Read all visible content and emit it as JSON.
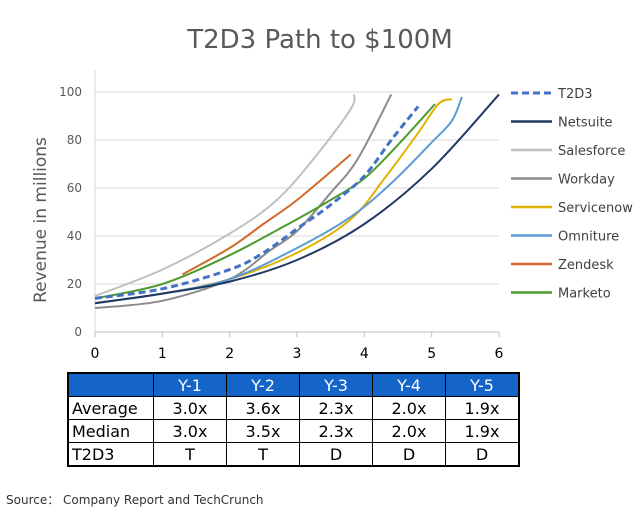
{
  "chart_data": {
    "type": "line",
    "title": "T2D3 Path to $100M",
    "xlabel": "",
    "ylabel": "Revenue in millions",
    "xlim": [
      0,
      6
    ],
    "ylim": [
      0,
      100
    ],
    "xticks": [
      "0",
      "1",
      "2",
      "3",
      "4",
      "5",
      "6"
    ],
    "yticks": [
      "0",
      "20",
      "40",
      "60",
      "80",
      "100"
    ],
    "grid": true,
    "legend_position": "right",
    "series": [
      {
        "name": "T2D3",
        "color": "#4472c4",
        "dashed": true,
        "points": [
          [
            0,
            14
          ],
          [
            1,
            18
          ],
          [
            2,
            26
          ],
          [
            2.5,
            33
          ],
          [
            3,
            43
          ],
          [
            3.5,
            53
          ],
          [
            4,
            65
          ],
          [
            4.4,
            80
          ],
          [
            4.8,
            94
          ]
        ]
      },
      {
        "name": "Netsuite",
        "color": "#1f3864",
        "points": [
          [
            0,
            12
          ],
          [
            1,
            16
          ],
          [
            2,
            21
          ],
          [
            3,
            30
          ],
          [
            4,
            45
          ],
          [
            5,
            68
          ],
          [
            6,
            99
          ]
        ]
      },
      {
        "name": "Salesforce",
        "color": "#c0c0c0",
        "points": [
          [
            0,
            15
          ],
          [
            1,
            26
          ],
          [
            2,
            41
          ],
          [
            2.7,
            55
          ],
          [
            3.3,
            74
          ],
          [
            3.8,
            93
          ],
          [
            3.85,
            99
          ]
        ]
      },
      {
        "name": "Workday",
        "color": "#8c8c8c",
        "points": [
          [
            0,
            10
          ],
          [
            1,
            13
          ],
          [
            2,
            22
          ],
          [
            2.6,
            34
          ],
          [
            3,
            42
          ],
          [
            3.5,
            58
          ],
          [
            3.9,
            72
          ],
          [
            4.4,
            99
          ]
        ]
      },
      {
        "name": "Servicenow",
        "color": "#e2b100",
        "points": [
          [
            0,
            12
          ],
          [
            1,
            16
          ],
          [
            2,
            22
          ],
          [
            3,
            33
          ],
          [
            3.8,
            47
          ],
          [
            4.3,
            64
          ],
          [
            4.8,
            83
          ],
          [
            5.1,
            95
          ],
          [
            5.3,
            97
          ]
        ]
      },
      {
        "name": "Omniture",
        "color": "#5b9bd5",
        "points": [
          [
            0,
            12
          ],
          [
            1,
            16
          ],
          [
            2,
            22
          ],
          [
            3,
            35
          ],
          [
            3.8,
            48
          ],
          [
            4.4,
            62
          ],
          [
            5,
            79
          ],
          [
            5.3,
            88
          ],
          [
            5.45,
            98
          ]
        ]
      },
      {
        "name": "Zendesk",
        "color": "#d0692a",
        "points": [
          [
            1.3,
            24
          ],
          [
            2,
            35
          ],
          [
            2.5,
            45
          ],
          [
            3,
            55
          ],
          [
            3.8,
            74
          ]
        ]
      },
      {
        "name": "Marketo",
        "color": "#4e9a2f",
        "points": [
          [
            0,
            14
          ],
          [
            1,
            20
          ],
          [
            2,
            32
          ],
          [
            3,
            47
          ],
          [
            3.5,
            55
          ],
          [
            4,
            64
          ],
          [
            4.5,
            78
          ],
          [
            5.05,
            95
          ]
        ]
      }
    ]
  },
  "table": {
    "headers": [
      "",
      "Y-1",
      "Y-2",
      "Y-3",
      "Y-4",
      "Y-5"
    ],
    "rows": [
      [
        "Average",
        "3.0x",
        "3.6x",
        "2.3x",
        "2.0x",
        "1.9x"
      ],
      [
        "Median",
        "3.0x",
        "3.5x",
        "2.3x",
        "2.0x",
        "1.9x"
      ],
      [
        "T2D3",
        "T",
        "T",
        "D",
        "D",
        "D"
      ]
    ]
  },
  "source": "Source： Company Report and TechCrunch"
}
